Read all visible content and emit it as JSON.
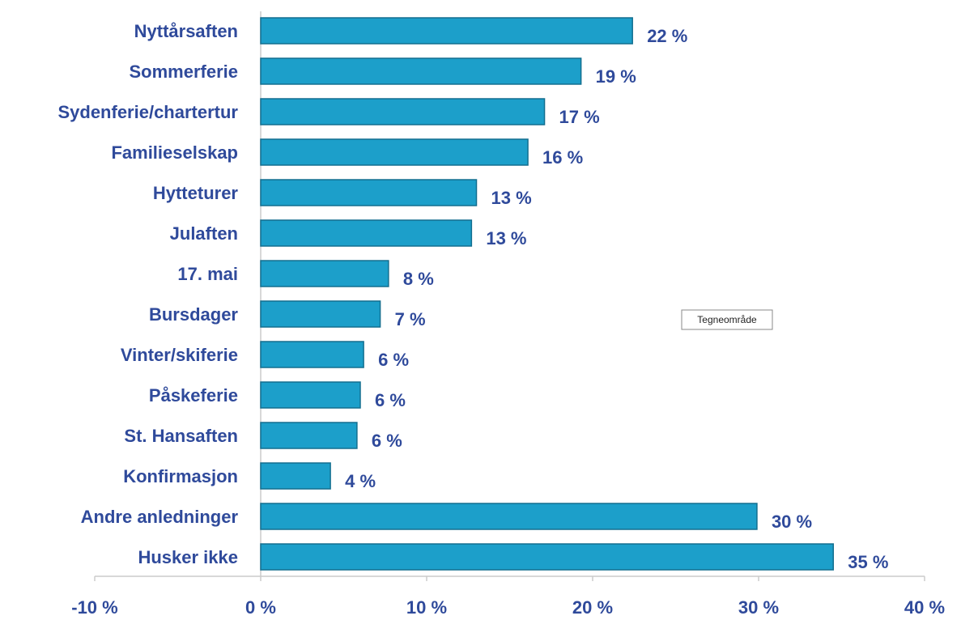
{
  "chart_data": {
    "type": "barh",
    "categories": [
      "Nyttårsaften",
      "Sommerferie",
      "Sydenferie/chartertur",
      "Familieselskap",
      "Hytteturer",
      "Julaften",
      "17. mai",
      "Bursdager",
      "Vinter/skiferie",
      "Påskeferie",
      "St. Hansaften",
      "Konfirmasjon",
      "Andre anledninger",
      "Husker ikke"
    ],
    "values": [
      22.4,
      19.3,
      17.1,
      16.1,
      13.0,
      12.7,
      7.7,
      7.2,
      6.2,
      6.0,
      5.8,
      4.2,
      29.9,
      34.5
    ],
    "value_labels": [
      "22 %",
      "19 %",
      "17 %",
      "16 %",
      "13 %",
      "13 %",
      "8 %",
      "7 %",
      "6 %",
      "6 %",
      "6 %",
      "4 %",
      "30 %",
      "35 %"
    ],
    "color": "#1c9fca",
    "xlim": [
      -10,
      40
    ],
    "xticks": [
      {
        "value": -10,
        "label": "-10 %"
      },
      {
        "value": 0,
        "label": "0 %"
      },
      {
        "value": 10,
        "label": "10 %"
      },
      {
        "value": 20,
        "label": "20 %"
      },
      {
        "value": 30,
        "label": "30 %"
      },
      {
        "value": 40,
        "label": "40 %"
      }
    ],
    "tooltip": "Tegneområde"
  }
}
